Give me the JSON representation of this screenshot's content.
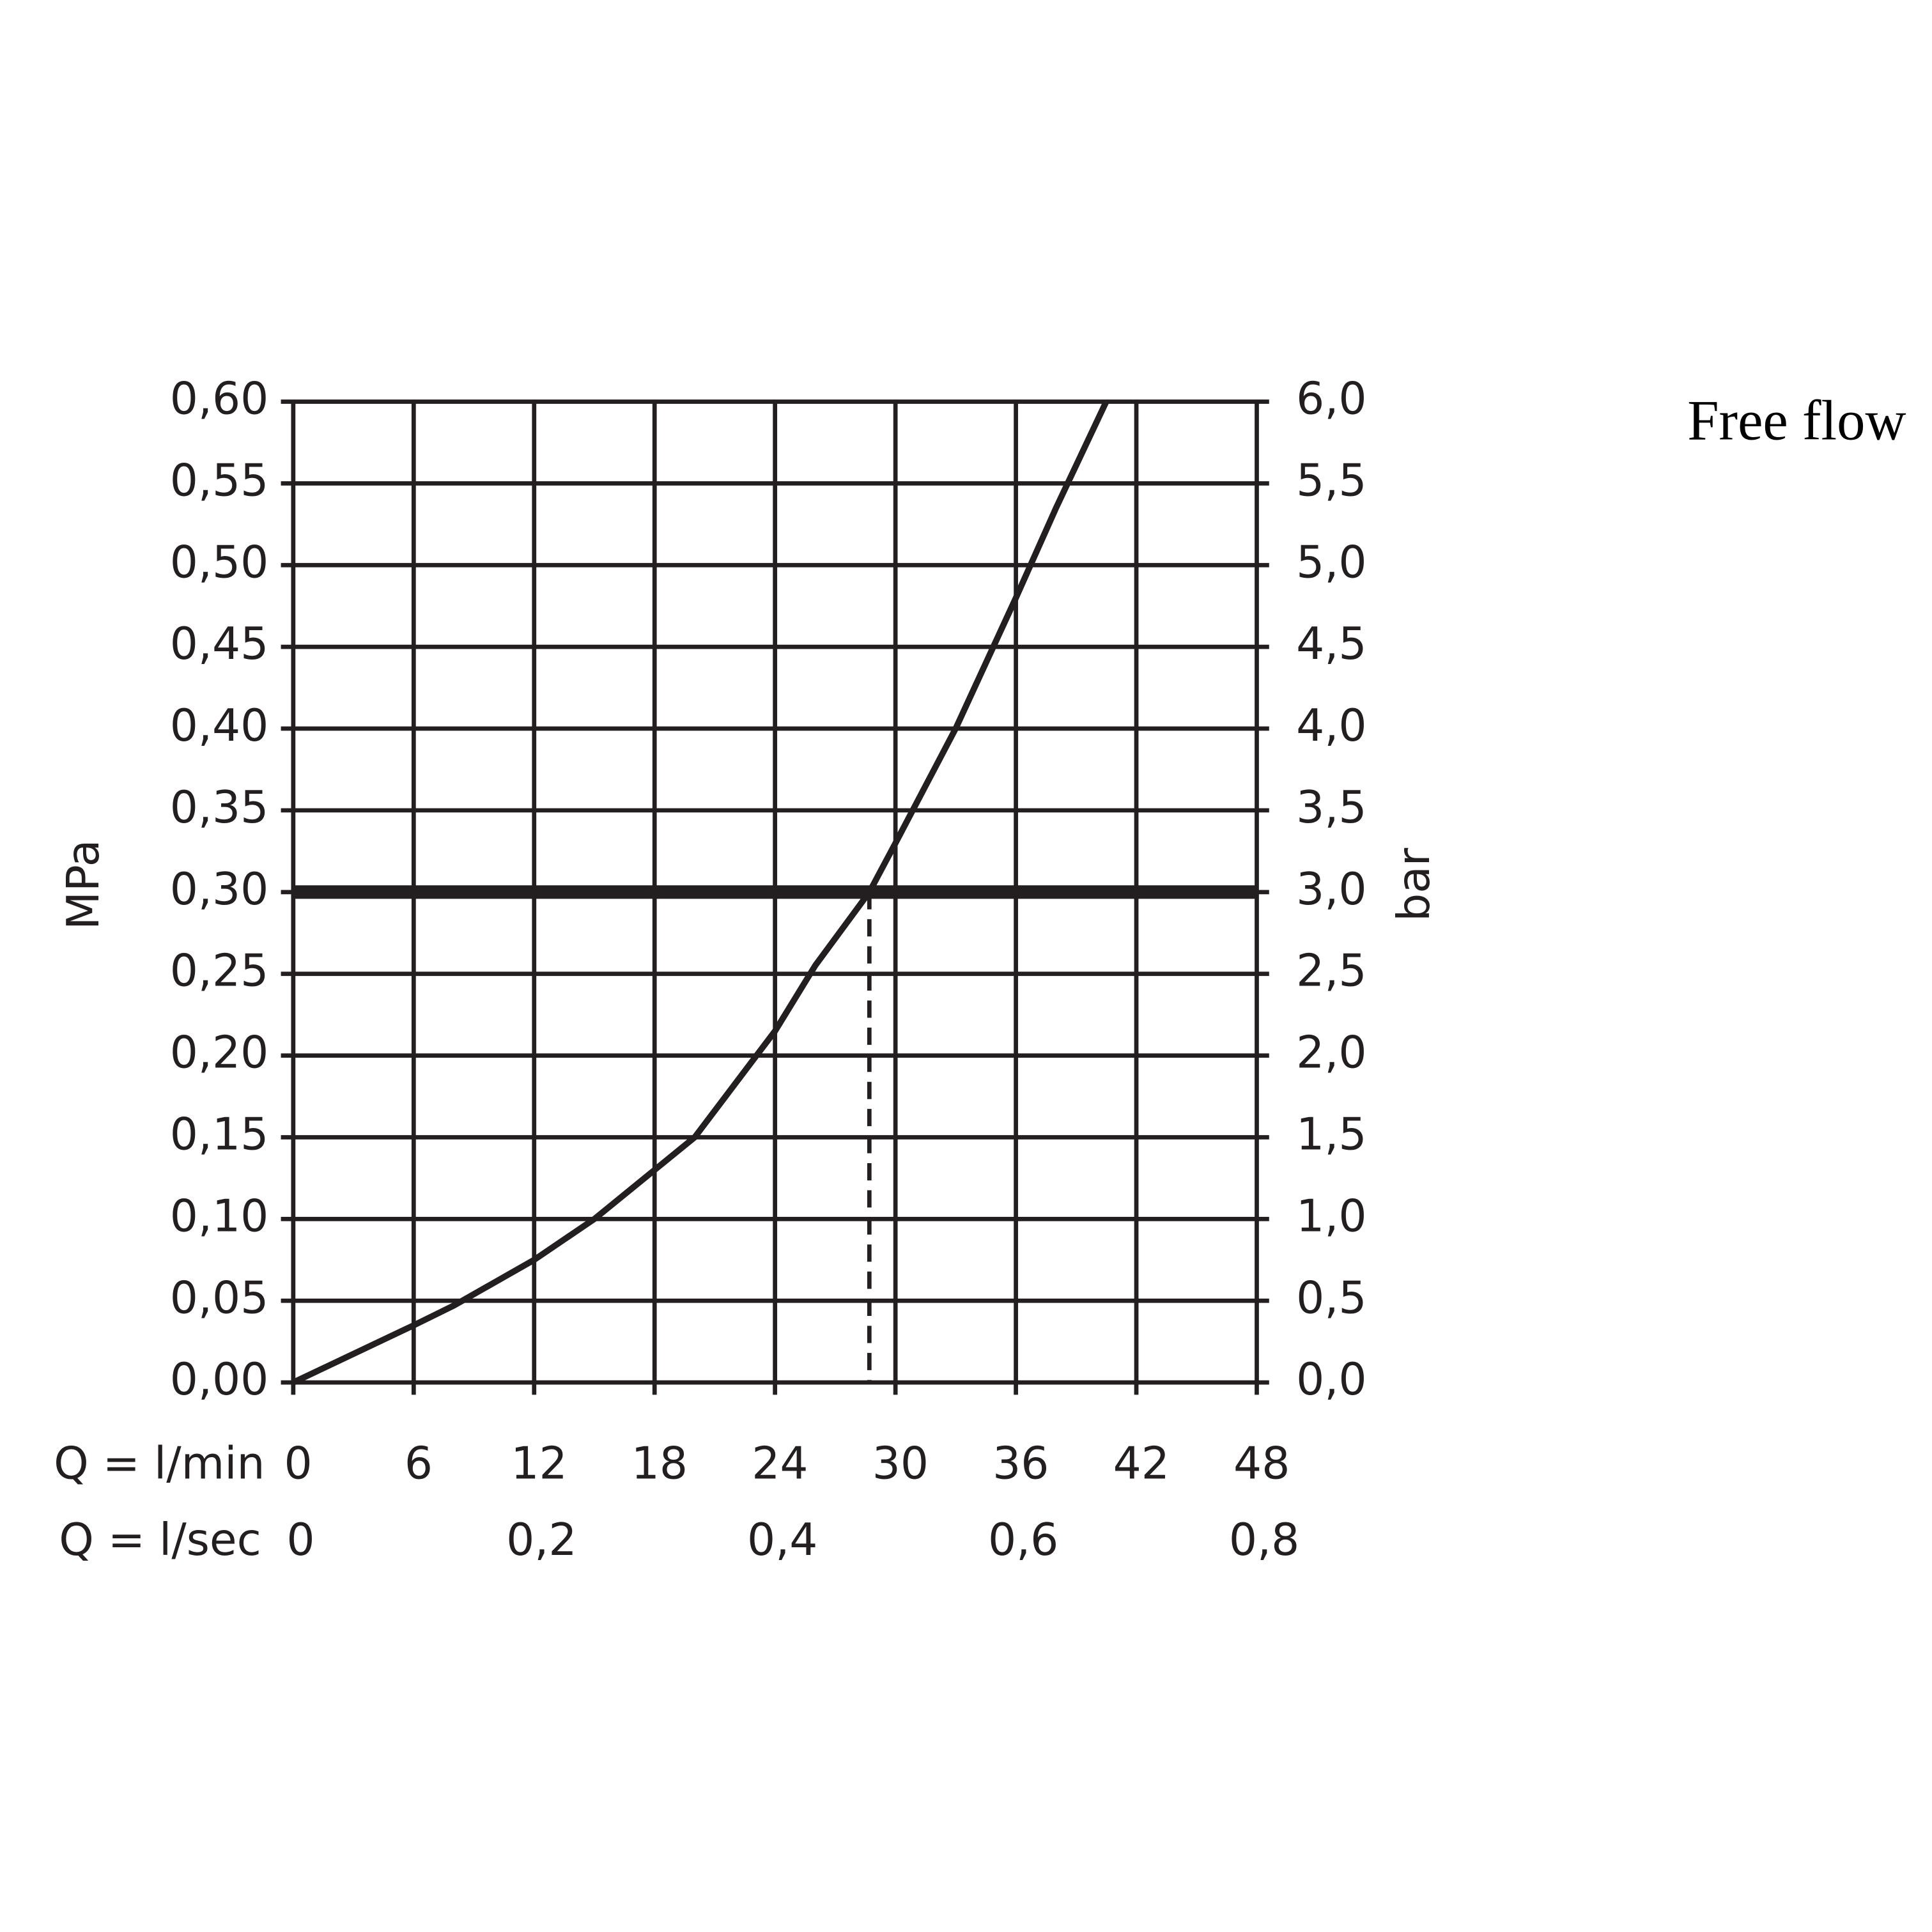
{
  "chart_data": {
    "type": "line",
    "title": "Free flow",
    "y_label": "MPa",
    "y2_label": "bar",
    "x_label": "Q = l/min",
    "x2_label": "Q = l/sec",
    "series": [
      {
        "color": "#231f20",
        "x": [
          0,
          6,
          8,
          12,
          15,
          18,
          20,
          24,
          26,
          28.7,
          30,
          33,
          36,
          38,
          40.5
        ],
        "values": [
          0,
          0.035,
          0.047,
          0.075,
          0.1,
          0.13,
          0.15,
          0.215,
          0.255,
          0.3,
          0.33,
          0.4,
          0.48,
          0.535,
          0.6
        ]
      }
    ],
    "reference_y": 0.3,
    "reference_x": 28.7,
    "xlim": [
      0,
      48
    ],
    "xticks": [
      0,
      6,
      12,
      18,
      24,
      30,
      36,
      42,
      48
    ],
    "x2lim": [
      0,
      0.8
    ],
    "x2ticks": [
      0,
      {
        "value": 0.2,
        "label": "0,2"
      },
      {
        "value": 0.4,
        "label": "0,4"
      },
      {
        "value": 0.6,
        "label": "0,6"
      },
      {
        "value": 0.8,
        "label": "0,8"
      }
    ],
    "ylim": [
      0,
      0.6
    ],
    "yticks": [
      {
        "value": 0,
        "label": "0,00"
      },
      {
        "value": 0.05,
        "label": "0,05"
      },
      {
        "value": 0.1,
        "label": "0,10"
      },
      {
        "value": 0.15,
        "label": "0,15"
      },
      {
        "value": 0.2,
        "label": "0,20"
      },
      {
        "value": 0.25,
        "label": "0,25"
      },
      {
        "value": 0.3,
        "label": "0,30"
      },
      {
        "value": 0.35,
        "label": "0,35"
      },
      {
        "value": 0.4,
        "label": "0,40"
      },
      {
        "value": 0.45,
        "label": "0,45"
      },
      {
        "value": 0.5,
        "label": "0,50"
      },
      {
        "value": 0.55,
        "label": "0,55"
      },
      {
        "value": 0.6,
        "label": "0,60"
      }
    ],
    "y2lim": [
      0,
      6
    ],
    "y2ticks": [
      {
        "value": 0,
        "label": "0,0"
      },
      {
        "value": 0.5,
        "label": "0,5"
      },
      {
        "value": 1,
        "label": "1,0"
      },
      {
        "value": 1.5,
        "label": "1,5"
      },
      {
        "value": 2,
        "label": "2,0"
      },
      {
        "value": 2.5,
        "label": "2,5"
      },
      {
        "value": 3,
        "label": "3,0"
      },
      {
        "value": 3.5,
        "label": "3,5"
      },
      {
        "value": 4,
        "label": "4,0"
      },
      {
        "value": 4.5,
        "label": "4,5"
      },
      {
        "value": 5,
        "label": "5,0"
      },
      {
        "value": 5.5,
        "label": "5,5"
      },
      {
        "value": 6,
        "label": "6,0"
      }
    ],
    "grid": true
  }
}
